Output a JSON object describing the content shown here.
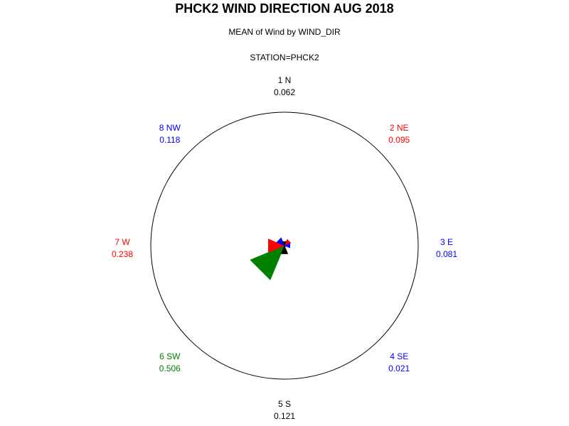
{
  "chart_data": {
    "type": "pie",
    "title": "PHCK2 WIND DIRECTION AUG 2018",
    "subtitle": "MEAN of Wind by WIND_DIR",
    "station_label": "STATION=PHCK2",
    "directions": [
      {
        "label": "1 N",
        "value": 0.062,
        "value_text": "0.062",
        "color": "#000000"
      },
      {
        "label": "2 NE",
        "value": 0.095,
        "value_text": "0.095",
        "color": "#ff0000"
      },
      {
        "label": "3 E",
        "value": 0.081,
        "value_text": "0.081",
        "color": "#0000ff"
      },
      {
        "label": "4 SE",
        "value": 0.021,
        "value_text": "0.021",
        "color": "#0000ff"
      },
      {
        "label": "5 S",
        "value": 0.121,
        "value_text": "0.121",
        "color": "#000000"
      },
      {
        "label": "6 SW",
        "value": 0.506,
        "value_text": "0.506",
        "color": "#008000"
      },
      {
        "label": "7 W",
        "value": 0.238,
        "value_text": "0.238",
        "color": "#ff0000"
      },
      {
        "label": "8 NW",
        "value": 0.118,
        "value_text": "0.118",
        "color": "#0000ff"
      }
    ],
    "label_colors": [
      "#000000",
      "#ff0000",
      "#0000ff",
      "#0000ff",
      "#000000",
      "#008000",
      "#ff0000",
      "#0000ff"
    ],
    "max_value": 1.0
  }
}
